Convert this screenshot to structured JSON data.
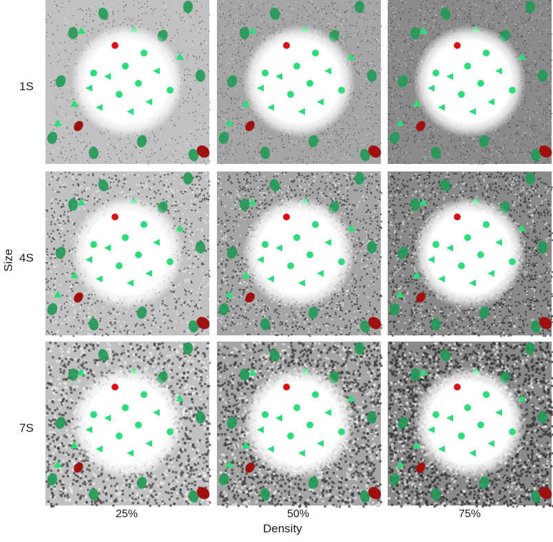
{
  "figure": {
    "xlabel": "Density",
    "ylabel": "Size",
    "rows": [
      "1S",
      "4S",
      "7S"
    ],
    "cols": [
      "25%",
      "50%",
      "75%"
    ],
    "row_noise_grain": [
      1,
      4,
      7
    ],
    "col_noise_density": [
      0.25,
      0.5,
      0.75
    ],
    "colors": {
      "green_marker": "#2ddc7a",
      "green_dark_blob": "#1f9a55",
      "red_marker": "#e01010",
      "red_dark_blob": "#a01010",
      "halo": "#ffffff",
      "noise_dark": "#222222"
    },
    "marker_types": [
      "green-dot",
      "green-triangle",
      "green-ellipse",
      "red-dot",
      "red-ellipse"
    ]
  }
}
